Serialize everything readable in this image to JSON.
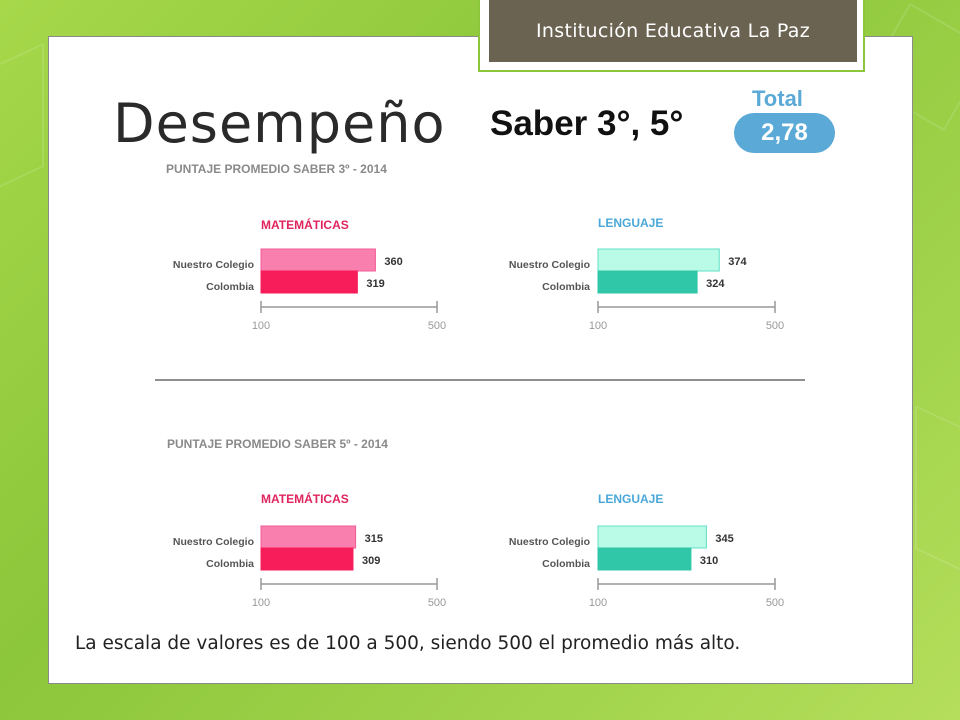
{
  "header": {
    "institution": "Institución Educativa La Paz",
    "title": "Desempeño",
    "subtitle": "Saber 3°, 5°",
    "total_label": "Total",
    "total_value": "2,78"
  },
  "footnote": "La escala de valores es de 100 a 500, siendo 500 el promedio más alto.",
  "colors": {
    "math_school": "#f97fae",
    "math_country": "#f71c5a",
    "lang_school": "#b9fbe6",
    "lang_country": "#2fc7a8",
    "math_title": "#e0245e",
    "lang_title": "#4aa8d8",
    "badge_bg": "#6b6352",
    "total": "#5aa9d6"
  },
  "chart_data": [
    {
      "type": "bar",
      "orientation": "horizontal",
      "section_title": "PUNTAJE PROMEDIO SABER 3º - 2014",
      "title": "MATEMÁTICAS",
      "categories": [
        "Nuestro Colegio",
        "Colombia"
      ],
      "values": [
        360,
        319
      ],
      "xlim": [
        100,
        500
      ],
      "ticks": [
        "100",
        "500"
      ]
    },
    {
      "type": "bar",
      "orientation": "horizontal",
      "section_title": "PUNTAJE PROMEDIO SABER 3º - 2014",
      "title": "LENGUAJE",
      "categories": [
        "Nuestro Colegio",
        "Colombia"
      ],
      "values": [
        374,
        324
      ],
      "xlim": [
        100,
        500
      ],
      "ticks": [
        "100",
        "500"
      ]
    },
    {
      "type": "bar",
      "orientation": "horizontal",
      "section_title": "PUNTAJE PROMEDIO SABER 5º - 2014",
      "title": "MATEMÁTICAS",
      "categories": [
        "Nuestro Colegio",
        "Colombia"
      ],
      "values": [
        315,
        309
      ],
      "xlim": [
        100,
        500
      ],
      "ticks": [
        "100",
        "500"
      ]
    },
    {
      "type": "bar",
      "orientation": "horizontal",
      "section_title": "PUNTAJE PROMEDIO SABER 5º - 2014",
      "title": "LENGUAJE",
      "categories": [
        "Nuestro Colegio",
        "Colombia"
      ],
      "values": [
        345,
        310
      ],
      "xlim": [
        100,
        500
      ],
      "ticks": [
        "100",
        "500"
      ]
    }
  ]
}
